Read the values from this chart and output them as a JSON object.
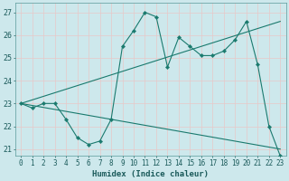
{
  "xlabel": "Humidex (Indice chaleur)",
  "bg_color": "#cde8ec",
  "line_color": "#1a7a6e",
  "grid_color": "#e8c8c8",
  "xlim_min": -0.5,
  "xlim_max": 23.5,
  "ylim_min": 20.7,
  "ylim_max": 27.4,
  "xticks": [
    0,
    1,
    2,
    3,
    4,
    5,
    6,
    7,
    8,
    9,
    10,
    11,
    12,
    13,
    14,
    15,
    16,
    17,
    18,
    19,
    20,
    21,
    22,
    23
  ],
  "yticks": [
    21,
    22,
    23,
    24,
    25,
    26,
    27
  ],
  "line1_x": [
    0,
    1,
    2,
    3,
    4,
    5,
    6,
    7,
    8,
    9,
    10,
    11,
    12,
    13,
    14,
    15,
    16,
    17,
    18,
    19,
    20,
    21,
    22,
    23
  ],
  "line1_y": [
    23.0,
    22.8,
    23.0,
    23.0,
    22.3,
    21.5,
    21.2,
    21.35,
    22.3,
    25.5,
    26.2,
    27.0,
    26.8,
    24.6,
    25.9,
    25.5,
    25.1,
    25.1,
    25.3,
    25.8,
    26.6,
    24.7,
    22.0,
    20.7
  ],
  "line2_x": [
    0,
    23
  ],
  "line2_y": [
    23.0,
    21.0
  ],
  "line3_x": [
    0,
    23
  ],
  "line3_y": [
    23.0,
    26.6
  ],
  "tick_fontsize": 5.5,
  "xlabel_fontsize": 6.5,
  "tick_color": "#1a5a5a"
}
